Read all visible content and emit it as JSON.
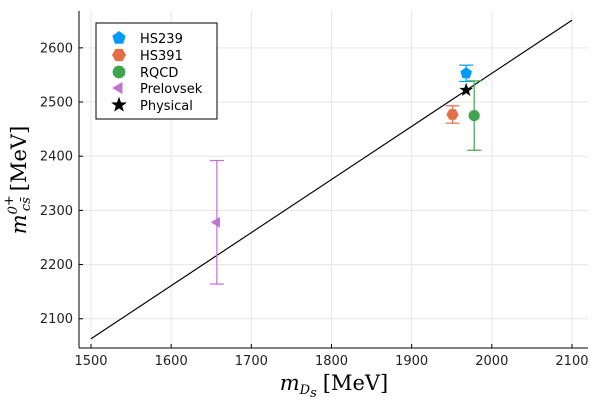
{
  "chart_data": {
    "type": "scatter",
    "title": "",
    "xlabel": {
      "symbol": "m",
      "subscript": "D",
      "subsubscript": "s",
      "unit": "[MeV]"
    },
    "ylabel": {
      "symbol": "m",
      "superscript": "0",
      "supersuperscript": "+",
      "subscript": "cs̄",
      "unit": "[MeV]"
    },
    "xlim": [
      1485,
      2120
    ],
    "ylim": [
      2046,
      2668
    ],
    "grid": true,
    "x_ticks": [
      1500,
      1600,
      1700,
      1800,
      1900,
      2000,
      2100
    ],
    "x_tick_labels": [
      "1500",
      "1600",
      "1700",
      "1800",
      "1900",
      "2000",
      "2100"
    ],
    "y_ticks": [
      2100,
      2200,
      2300,
      2400,
      2500,
      2600
    ],
    "y_tick_labels": [
      "2100",
      "2200",
      "2300",
      "2400",
      "2500",
      "2600"
    ],
    "reference_line": {
      "x": [
        1500,
        2100
      ],
      "y": [
        2063,
        2651
      ],
      "color": "#000000"
    },
    "legend_position": "top-left",
    "series": [
      {
        "name": "HS239",
        "marker": "pentagon",
        "color": "#009AFA",
        "points": [
          {
            "x": 1968,
            "y": 2553,
            "yerr_low": 2538,
            "yerr_high": 2568
          }
        ]
      },
      {
        "name": "HS391",
        "marker": "hexagon",
        "color": "#E26F46",
        "points": [
          {
            "x": 1951,
            "y": 2477,
            "yerr_low": 2461,
            "yerr_high": 2493
          }
        ]
      },
      {
        "name": "RQCD",
        "marker": "circle",
        "color": "#3EA44E",
        "points": [
          {
            "x": 1978,
            "y": 2475,
            "yerr_low": 2411,
            "yerr_high": 2539
          }
        ]
      },
      {
        "name": "Prelovsek",
        "marker": "triangle-left",
        "color": "#C271D2",
        "points": [
          {
            "x": 1657,
            "y": 2278,
            "yerr_low": 2164,
            "yerr_high": 2392
          }
        ]
      },
      {
        "name": "Physical",
        "marker": "star",
        "color": "#000000",
        "points": [
          {
            "x": 1968,
            "y": 2522
          }
        ]
      }
    ]
  }
}
